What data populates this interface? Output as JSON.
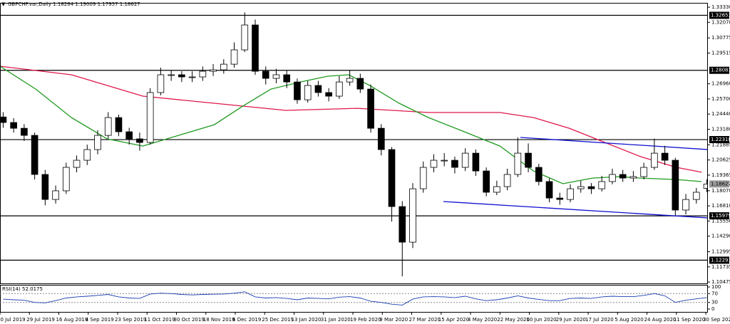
{
  "chart_data": {
    "type": "candlestick",
    "symbol": "GBPCHF.var,Daily",
    "x": [
      1.5,
      6.5,
      11.5,
      16.5,
      21.5,
      26.5,
      31.5,
      36.5,
      41.5,
      46.5,
      51.5,
      56.5,
      61.5,
      66.5,
      71.5,
      76.5,
      81.5,
      86.5,
      91.5,
      96.5,
      101.5,
      106.5,
      111.5,
      116.5,
      121.5,
      126.5,
      131.5,
      136.5,
      141.5,
      146.5,
      151.5,
      156.5,
      161.5,
      166.5,
      171.5,
      176.5,
      181.5,
      186.5,
      191.5,
      196.5,
      201.5,
      206.5,
      211.5,
      216.5,
      221.5,
      226.5,
      231.5,
      236.5,
      241.5,
      246.5,
      251.5,
      256.5,
      261.5,
      266.5,
      271.5,
      276.5,
      281.5,
      286.5,
      291.5,
      296.5,
      301.5,
      306.5,
      311.5,
      316.5,
      321.5,
      326.5,
      331.5,
      336.5
    ],
    "open": [
      1.242,
      1.2374,
      1.2326,
      1.2267,
      1.1942,
      1.1734,
      1.1806,
      1.2001,
      1.206,
      1.2149,
      1.2267,
      1.2415,
      1.2297,
      1.2238,
      1.2208,
      1.2623,
      1.2771,
      1.2771,
      1.2753,
      1.2753,
      1.28,
      1.2812,
      1.2859,
      1.2978,
      1.3185,
      1.28,
      1.2741,
      1.2771,
      1.2711,
      1.2563,
      1.2682,
      1.2623,
      1.2593,
      1.2711,
      1.2741,
      1.2652,
      1.2326,
      1.2149,
      1.1675,
      1.1379,
      1.1823,
      1.2001,
      1.206,
      1.206,
      1.2001,
      1.2119,
      1.1971,
      1.1794,
      1.1841,
      1.1942,
      1.2119,
      1.2001,
      1.1883,
      1.1746,
      1.1734,
      1.1823,
      1.1841,
      1.1823,
      1.1883,
      1.1942,
      1.1912,
      1.1924,
      1.2001,
      1.2119,
      1.206,
      1.1646,
      1.1734,
      1.18264
    ],
    "high": [
      1.246,
      1.241,
      1.236,
      1.229,
      1.198,
      1.185,
      1.204,
      1.21,
      1.219,
      1.231,
      1.246,
      1.244,
      1.233,
      1.229,
      1.266,
      1.283,
      1.281,
      1.28,
      1.28,
      1.284,
      1.286,
      1.29,
      1.304,
      1.329,
      1.323,
      1.284,
      1.282,
      1.281,
      1.274,
      1.272,
      1.272,
      1.266,
      1.276,
      1.281,
      1.278,
      1.269,
      1.236,
      1.217,
      1.172,
      1.187,
      1.205,
      1.211,
      1.212,
      1.209,
      1.216,
      1.215,
      1.2,
      1.189,
      1.199,
      1.225,
      1.22,
      1.203,
      1.191,
      1.179,
      1.186,
      1.189,
      1.187,
      1.193,
      1.199,
      1.198,
      1.197,
      1.204,
      1.224,
      1.218,
      1.208,
      1.178,
      1.183,
      1.19009
    ],
    "low": [
      1.233,
      1.229,
      1.222,
      1.19,
      1.1685,
      1.17,
      1.178,
      1.196,
      1.202,
      1.211,
      1.224,
      1.226,
      1.219,
      1.214,
      1.219,
      1.26,
      1.272,
      1.271,
      1.271,
      1.272,
      1.276,
      1.278,
      1.283,
      1.296,
      1.277,
      1.269,
      1.27,
      1.266,
      1.253,
      1.254,
      1.259,
      1.255,
      1.257,
      1.268,
      1.262,
      1.229,
      1.21,
      1.155,
      1.1095,
      1.133,
      1.179,
      1.196,
      1.201,
      1.195,
      1.197,
      1.193,
      1.176,
      1.177,
      1.181,
      1.192,
      1.196,
      1.185,
      1.171,
      1.169,
      1.171,
      1.179,
      1.178,
      1.18,
      1.186,
      1.188,
      1.188,
      1.19,
      1.198,
      1.202,
      1.16,
      1.161,
      1.17,
      1.17957
    ],
    "close": [
      1.2374,
      1.2326,
      1.2267,
      1.1942,
      1.1734,
      1.1806,
      1.2001,
      1.206,
      1.2149,
      1.2267,
      1.2415,
      1.2297,
      1.2238,
      1.2208,
      1.2623,
      1.2771,
      1.2771,
      1.2753,
      1.2753,
      1.28,
      1.2812,
      1.2859,
      1.2978,
      1.3185,
      1.28,
      1.2741,
      1.2771,
      1.2711,
      1.2563,
      1.2682,
      1.2623,
      1.2593,
      1.2711,
      1.2741,
      1.2652,
      1.2326,
      1.2149,
      1.1675,
      1.1379,
      1.1823,
      1.2001,
      1.206,
      1.206,
      1.2001,
      1.2119,
      1.1971,
      1.1794,
      1.1841,
      1.1942,
      1.2119,
      1.2001,
      1.1883,
      1.1746,
      1.1734,
      1.1823,
      1.1841,
      1.1823,
      1.1883,
      1.1942,
      1.1912,
      1.1924,
      1.2001,
      1.2119,
      1.206,
      1.1646,
      1.1734,
      1.1794,
      1.18627
    ],
    "candle_color": "#000000",
    "up_fill": "#ffffff",
    "xlim": [
      0,
      337
    ],
    "xticks": [
      {
        "value": 0,
        "label": "10 Jul 2019"
      },
      {
        "value": 14,
        "label": "29 Jul 2019"
      },
      {
        "value": 28,
        "label": "16 Aug 2019"
      },
      {
        "value": 42,
        "label": "4 Sep 2019"
      },
      {
        "value": 56,
        "label": "23 Sep 2019"
      },
      {
        "value": 70,
        "label": "11 Oct 2019"
      },
      {
        "value": 84,
        "label": "30 Oct 2019"
      },
      {
        "value": 98,
        "label": "18 Nov 2019"
      },
      {
        "value": 112,
        "label": "6 Dec 2019"
      },
      {
        "value": 126,
        "label": "25 Dec 2019"
      },
      {
        "value": 140,
        "label": "13 Jan 2020"
      },
      {
        "value": 154,
        "label": "31 Jan 2020"
      },
      {
        "value": 168,
        "label": "19 Feb 2020"
      },
      {
        "value": 182,
        "label": "9 Mar 2020"
      },
      {
        "value": 196,
        "label": "27 Mar 2020"
      },
      {
        "value": 210,
        "label": "15 Apr 2020"
      },
      {
        "value": 224,
        "label": "4 May 2020"
      },
      {
        "value": 238,
        "label": "22 May 2020"
      },
      {
        "value": 252,
        "label": "10 Jun 2020"
      },
      {
        "value": 266,
        "label": "29 Jun 2020"
      },
      {
        "value": 280,
        "label": "17 Jul 2020"
      },
      {
        "value": 294,
        "label": "5 Aug 2020"
      },
      {
        "value": 308,
        "label": "24 Aug 2020"
      },
      {
        "value": 322,
        "label": "11 Sep 2020"
      },
      {
        "value": 336,
        "label": "30 Sep 2020"
      }
    ],
    "ylim": [
      1.1036,
      1.3363
    ],
    "yticks": [
      {
        "value": 1.3333,
        "label": "1.33330"
      },
      {
        "value": 1.3207,
        "label": "1.32070"
      },
      {
        "value": 1.30775,
        "label": "1.30775"
      },
      {
        "value": 1.29515,
        "label": "1.29515"
      },
      {
        "value": 1.2696,
        "label": "1.26960"
      },
      {
        "value": 1.257,
        "label": "1.25700"
      },
      {
        "value": 1.2444,
        "label": "1.24440"
      },
      {
        "value": 1.2318,
        "label": "1.23180"
      },
      {
        "value": 1.21885,
        "label": "1.21885"
      },
      {
        "value": 1.20625,
        "label": "1.20625"
      },
      {
        "value": 1.19365,
        "label": "1.19365"
      },
      {
        "value": 1.1807,
        "label": "1.18070"
      },
      {
        "value": 1.1681,
        "label": "1.16810"
      },
      {
        "value": 1.1555,
        "label": "1.15550"
      },
      {
        "value": 1.1429,
        "label": "1.14290"
      },
      {
        "value": 1.12995,
        "label": "1.12995"
      },
      {
        "value": 1.11735,
        "label": "1.11735"
      },
      {
        "value": 1.10475,
        "label": "1.10475"
      }
    ],
    "levels": [
      1.32653,
      1.28081,
      1.22318,
      1.15979,
      1.12291
    ],
    "level_color": "#000000",
    "moving_averages": [
      {
        "color": "#e0184a",
        "x": [
          0,
          34,
          68,
          102,
          136,
          170,
          187,
          204,
          238,
          254,
          271,
          288,
          305,
          322,
          334
        ],
        "values": [
          1.2842,
          1.2771,
          1.2593,
          1.2534,
          1.2475,
          1.2492,
          1.2475,
          1.2457,
          1.2457,
          1.2415,
          1.2326,
          1.2208,
          1.209,
          1.2001,
          1.196
        ]
      },
      {
        "color": "#1f9a1f",
        "x": [
          0,
          17,
          34,
          51,
          68,
          85,
          102,
          115,
          129,
          143,
          156,
          166,
          176,
          190,
          204,
          221,
          238,
          254,
          268,
          282,
          295,
          305,
          322,
          334
        ],
        "values": [
          1.2842,
          1.2652,
          1.2415,
          1.2238,
          1.2178,
          1.2267,
          1.2356,
          1.2504,
          1.2652,
          1.2711,
          1.2759,
          1.2771,
          1.2682,
          1.2534,
          1.2415,
          1.2297,
          1.2178,
          1.1971,
          1.1865,
          1.1912,
          1.1924,
          1.1912,
          1.19,
          1.1883
        ]
      }
    ],
    "trendlines": [
      {
        "color": "#1010d0",
        "x": [
          247.7,
          337
        ],
        "values": [
          1.225,
          1.2149
        ]
      },
      {
        "color": "#1010d0",
        "x": [
          211.1,
          337
        ],
        "values": [
          1.1717,
          1.1581
        ]
      }
    ],
    "rsi": {
      "title": "RSI(14)",
      "color": "#1a3fb0",
      "values": [
        45,
        42,
        40,
        30,
        28,
        38,
        50,
        55,
        58,
        62,
        66,
        55,
        50,
        48,
        68,
        72,
        70,
        66,
        64,
        66,
        67,
        68,
        72,
        78,
        55,
        50,
        52,
        48,
        42,
        50,
        48,
        46,
        54,
        56,
        50,
        35,
        30,
        22,
        18,
        45,
        55,
        56,
        55,
        52,
        58,
        46,
        38,
        42,
        50,
        60,
        50,
        44,
        38,
        38,
        48,
        50,
        48,
        55,
        58,
        56,
        56,
        62,
        70,
        60,
        30,
        40,
        46,
        52.0175
      ],
      "ylim": [
        0,
        100
      ],
      "yticks": [
        100,
        70,
        30,
        0
      ],
      "levels": [
        70,
        30
      ]
    }
  }
}
